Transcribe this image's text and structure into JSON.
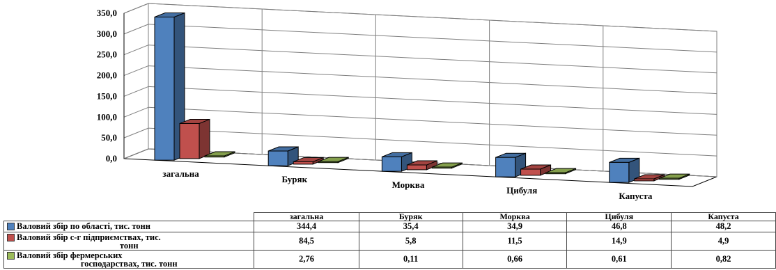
{
  "chart_data": {
    "type": "bar",
    "categories": [
      "загальна",
      "Буряк",
      "Морква",
      "Цибуля",
      "Капуста"
    ],
    "series": [
      {
        "name": "Валовий збір по області, тис. тонн",
        "values": [
          344.4,
          35.4,
          34.9,
          46.8,
          48.2
        ],
        "display": [
          "344,4",
          "35,4",
          "34,9",
          "46,8",
          "48,2"
        ],
        "color": "#4f81bd"
      },
      {
        "name": "Валовий збір с-г підприємствах, тис. тонн",
        "values": [
          84.5,
          5.8,
          11.5,
          14.9,
          4.9
        ],
        "display": [
          "84,5",
          "5,8",
          "11,5",
          "14,9",
          "4,9"
        ],
        "color": "#c0504d"
      },
      {
        "name": "Валовий збір фермерських господарствах, тис. тонн",
        "values": [
          2.76,
          0.11,
          0.66,
          0.61,
          0.82
        ],
        "display": [
          "2,76",
          "0,11",
          "0,66",
          "0,61",
          "0,82"
        ],
        "color": "#9bbb59"
      }
    ],
    "yticks": [
      "0,0",
      "50,0",
      "100,0",
      "150,0",
      "200,0",
      "250,0",
      "300,0",
      "350,0"
    ],
    "ylim": [
      0,
      350
    ],
    "grid": true,
    "three_d": true,
    "legend": "data-table"
  },
  "table": {
    "headers": [
      "загальна",
      "Буряк",
      "Морква",
      "Цибуля",
      "Капуста"
    ],
    "rows": [
      {
        "label": "Валовий збір по області, тис. тонн",
        "label_line1": "Валовий збір по області, тис. тонн",
        "label_line2": "",
        "values": [
          "344,4",
          "35,4",
          "34,9",
          "46,8",
          "48,2"
        ]
      },
      {
        "label": "Валовий збір с-г підприємствах, тис. тонн",
        "label_line1": "Валовий збір с-г підприємствах, тис.",
        "label_line2": "тонн",
        "values": [
          "84,5",
          "5,8",
          "11,5",
          "14,9",
          "4,9"
        ]
      },
      {
        "label": "Валовий збір фермерських господарствах, тис. тонн",
        "label_line1": "Валовий збір фермерських",
        "label_line2": "господарствах, тис. тонн",
        "values": [
          "2,76",
          "0,11",
          "0,66",
          "0,61",
          "0,82"
        ]
      }
    ]
  }
}
